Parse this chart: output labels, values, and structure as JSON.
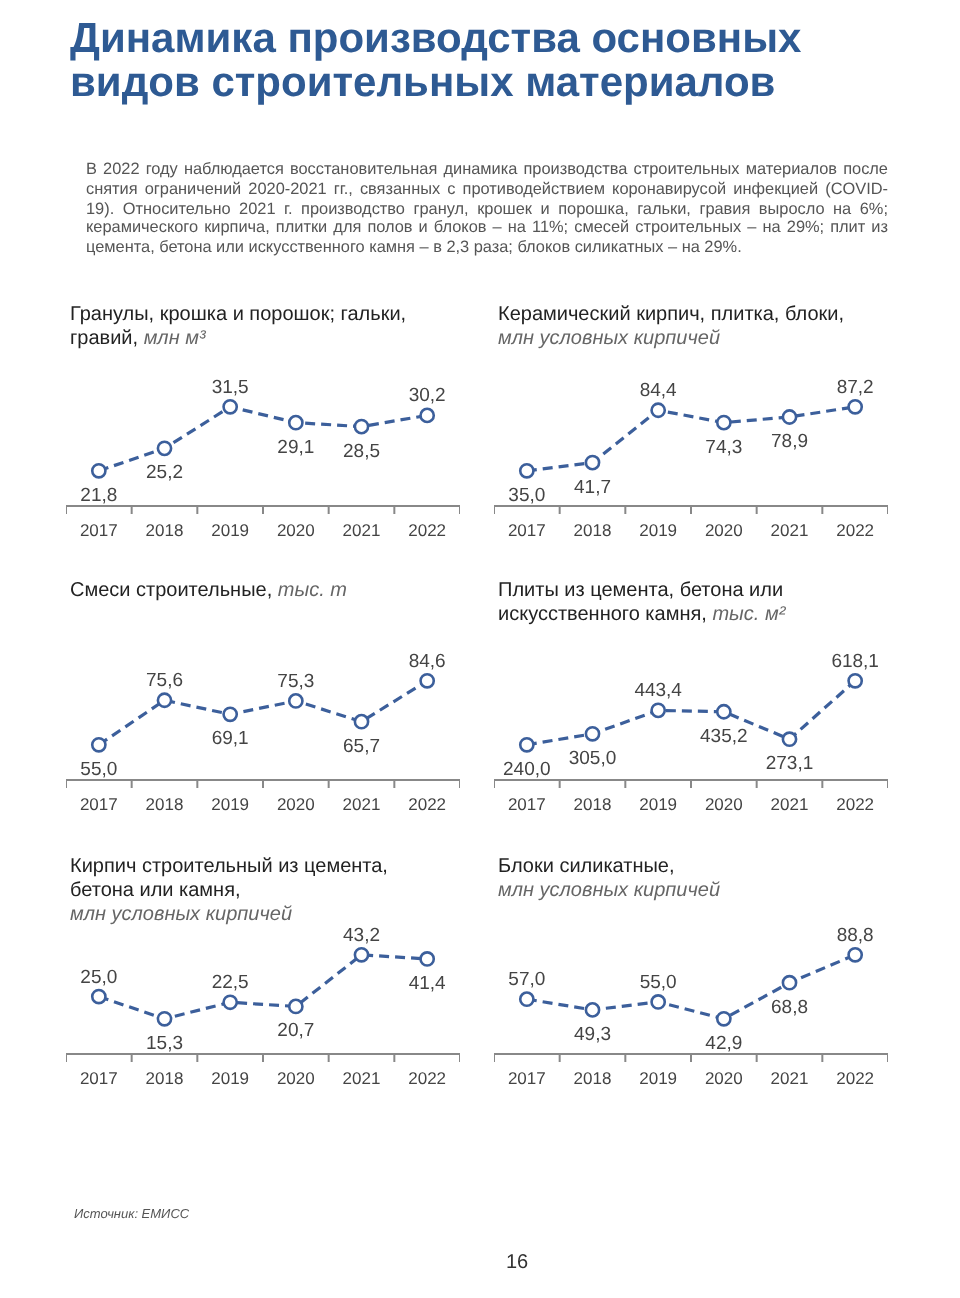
{
  "chart_data": [
    {
      "type": "other",
      "title": "Динамика производства основных видов строительных материалов",
      "annotations": [
        "В 2022 году наблюдается восстановительная динамика производства строительных материалов после снятия ограничений 2020-2021 гг., связанных с противодействием коронавирусой инфекцией (COVID-19). Относительно 2021 г. производство гранул, крошек и порошка, гальки, гравия выросло на 6%; керамического кирпича, плитки для полов и блоков – на 11%; смесей строительных – на 29%; плит из цемента, бетона или искусственного камня – в 2,3 раза; блоков силикатных – на 29%."
      ]
    },
    {
      "type": "line",
      "title": "Гранулы, крошка и порошок; гальки, гравий,",
      "subtitle": "млн м³",
      "categories": [
        "2017",
        "2018",
        "2019",
        "2020",
        "2021",
        "2022"
      ],
      "values": [
        21.8,
        25.2,
        31.5,
        29.1,
        28.5,
        30.2
      ],
      "value_labels": [
        "21,8",
        "25,2",
        "31,5",
        "29,1",
        "28,5",
        "30,2"
      ],
      "color": "#3c5f9b",
      "marker": "circle",
      "line_style": "dashed"
    },
    {
      "type": "line",
      "title": "Керамический кирпич, плитка, блоки,",
      "subtitle": "млн условных кирпичей",
      "categories": [
        "2017",
        "2018",
        "2019",
        "2020",
        "2021",
        "2022"
      ],
      "values": [
        35.0,
        41.7,
        84.4,
        74.3,
        78.9,
        87.2
      ],
      "value_labels": [
        "35,0",
        "41,7",
        "84,4",
        "74,3",
        "78,9",
        "87,2"
      ],
      "color": "#3c5f9b",
      "marker": "circle",
      "line_style": "dashed"
    },
    {
      "type": "line",
      "title": "Смеси строительные,",
      "subtitle": "тыс. т",
      "categories": [
        "2017",
        "2018",
        "2019",
        "2020",
        "2021",
        "2022"
      ],
      "values": [
        55.0,
        75.6,
        69.1,
        75.3,
        65.7,
        84.6
      ],
      "value_labels": [
        "55,0",
        "75,6",
        "69,1",
        "75,3",
        "65,7",
        "84,6"
      ],
      "color": "#3c5f9b",
      "marker": "circle",
      "line_style": "dashed"
    },
    {
      "type": "line",
      "title": "Плиты из цемента, бетона или искусственного камня,",
      "subtitle": "тыс. м²",
      "categories": [
        "2017",
        "2018",
        "2019",
        "2020",
        "2021",
        "2022"
      ],
      "values": [
        240.0,
        305.0,
        443.4,
        435.2,
        273.1,
        618.1
      ],
      "value_labels": [
        "240,0",
        "305,0",
        "443,4",
        "435,2",
        "273,1",
        "618,1"
      ],
      "color": "#3c5f9b",
      "marker": "circle",
      "line_style": "dashed"
    },
    {
      "type": "line",
      "title": "Кирпич строительный из цемента, бетона или камня,",
      "subtitle": "млн условных кирпичей",
      "categories": [
        "2017",
        "2018",
        "2019",
        "2020",
        "2021",
        "2022"
      ],
      "values": [
        25.0,
        15.3,
        22.5,
        20.7,
        43.2,
        41.4
      ],
      "value_labels": [
        "25,0",
        "15,3",
        "22,5",
        "20,7",
        "43,2",
        "41,4"
      ],
      "color": "#3c5f9b",
      "marker": "circle",
      "line_style": "dashed"
    },
    {
      "type": "line",
      "title": "Блоки силикатные,",
      "subtitle": "млн условных кирпичей",
      "categories": [
        "2017",
        "2018",
        "2019",
        "2020",
        "2021",
        "2022"
      ],
      "values": [
        57.0,
        49.3,
        55.0,
        42.9,
        68.8,
        88.8
      ],
      "value_labels": [
        "57,0",
        "49,3",
        "55,0",
        "42,9",
        "68,8",
        "88,8"
      ],
      "color": "#3c5f9b",
      "marker": "circle",
      "line_style": "dashed"
    },
    {
      "type": "other",
      "annotations": [
        "Источник: ЕМИСС",
        "16"
      ]
    }
  ]
}
